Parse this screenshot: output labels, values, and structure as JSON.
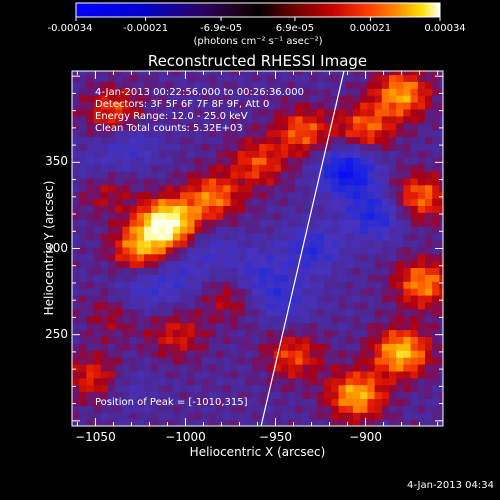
{
  "colorbar": {
    "tick_labels": [
      "-0.00034",
      "-0.00021",
      "-6.9e-05",
      "6.9e-05",
      "0.00021",
      "0.00034"
    ],
    "tick_values": [
      -0.00034,
      -0.00021,
      -6.9e-05,
      6.9e-05,
      0.00021,
      0.00034
    ],
    "range": [
      -0.00034,
      0.00034
    ],
    "units": "(photons cm⁻² s⁻¹ asec⁻²)"
  },
  "title": "Reconstructed RHESSI Image",
  "info_lines": [
    "4-Jan-2013 00:22:56.000 to 00:26:36.000",
    "Detectors: 3F 5F 6F 7F 8F 9F, Att 0",
    "Energy Range: 12.0 - 25.0 keV",
    "Clean     Total counts: 5.32E+03"
  ],
  "peak_label": "Position of Peak = [-1010,315]",
  "timestamp": "4-Jan-2013 04:34",
  "chart_data": {
    "type": "heatmap",
    "title": "Reconstructed RHESSI Image",
    "xlabel": "Heliocentric X (arcsec)",
    "ylabel": "Heliocentric Y (arcsec)",
    "xlim": [
      -1063,
      -857
    ],
    "ylim": [
      197,
      403
    ],
    "x_ticks": [
      -1050,
      -1000,
      -950,
      -900
    ],
    "x_tick_labels": [
      "−1050",
      "−1000",
      "−950",
      "−900"
    ],
    "y_ticks": [
      250,
      300,
      350
    ],
    "y_tick_labels": [
      "250",
      "300",
      "350"
    ],
    "colormap": "RHESSI blue-black-red-yellow-white diverging",
    "peak": [
      -1010,
      315
    ],
    "limb_line": [
      [
        -958,
        197
      ],
      [
        -912,
        403
      ]
    ],
    "hot_regions": [
      {
        "x": -1010,
        "y": 315,
        "v": 1.0
      },
      {
        "x": -1025,
        "y": 300,
        "v": 0.6
      },
      {
        "x": -985,
        "y": 330,
        "v": 0.55
      },
      {
        "x": -960,
        "y": 350,
        "v": 0.45
      },
      {
        "x": -935,
        "y": 368,
        "v": 0.5
      },
      {
        "x": -900,
        "y": 370,
        "v": 0.5
      },
      {
        "x": -880,
        "y": 390,
        "v": 0.65
      },
      {
        "x": -870,
        "y": 330,
        "v": 0.55
      },
      {
        "x": -868,
        "y": 280,
        "v": 0.6
      },
      {
        "x": -880,
        "y": 240,
        "v": 0.75
      },
      {
        "x": -905,
        "y": 215,
        "v": 0.7
      },
      {
        "x": -940,
        "y": 238,
        "v": 0.45
      },
      {
        "x": -1040,
        "y": 380,
        "v": 0.45
      },
      {
        "x": -1045,
        "y": 335,
        "v": 0.35
      },
      {
        "x": -1050,
        "y": 225,
        "v": 0.45
      },
      {
        "x": -1005,
        "y": 250,
        "v": 0.35
      },
      {
        "x": -975,
        "y": 272,
        "v": 0.3
      },
      {
        "x": -1040,
        "y": 262,
        "v": 0.25
      }
    ],
    "cold_regions": [
      {
        "x": -910,
        "y": 345,
        "v": -0.8
      },
      {
        "x": -895,
        "y": 320,
        "v": -0.55
      },
      {
        "x": -930,
        "y": 300,
        "v": -0.45
      },
      {
        "x": -960,
        "y": 285,
        "v": -0.35
      },
      {
        "x": -1005,
        "y": 285,
        "v": -0.3
      },
      {
        "x": -1025,
        "y": 275,
        "v": -0.3
      },
      {
        "x": -985,
        "y": 300,
        "v": -0.25
      },
      {
        "x": -1030,
        "y": 360,
        "v": -0.3
      },
      {
        "x": -1050,
        "y": 345,
        "v": -0.25
      },
      {
        "x": -945,
        "y": 270,
        "v": -0.35
      },
      {
        "x": -1035,
        "y": 220,
        "v": -0.2
      }
    ]
  }
}
